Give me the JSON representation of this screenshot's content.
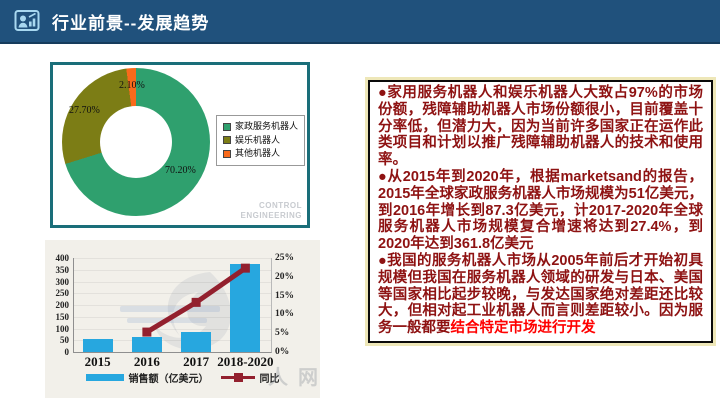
{
  "header": {
    "title": "行业前景--发展趋势",
    "icon": "presenter-chart-icon"
  },
  "colors": {
    "header_bg": "#20517C",
    "pie_panel_border": "#1A6E79",
    "text_dark_red": "#8E1212",
    "highlight_red": "#FF0000"
  },
  "chart_data": [
    {
      "type": "pie",
      "donut": true,
      "labels": [
        "家政服务机器人",
        "娱乐机器人",
        "其他机器人"
      ],
      "values": [
        70.2,
        27.7,
        2.1
      ],
      "value_labels": [
        "70.20%",
        "27.70%",
        "2.10%"
      ],
      "colors": [
        "#2FA06E",
        "#7C7D15",
        "#F96A1B"
      ],
      "legend_position": "right",
      "watermark_lines": [
        "CONTROL",
        "ENGINEERING"
      ]
    },
    {
      "type": "bar",
      "categories": [
        "2015",
        "2016",
        "2017",
        "2018-2020"
      ],
      "series": [
        {
          "name": "销售额（亿美元）",
          "kind": "bar",
          "axis": "left",
          "color": "#27A7DF",
          "values": [
            55,
            62,
            87,
            375
          ]
        },
        {
          "name": "同比",
          "kind": "line",
          "axis": "right",
          "color": "#93202E",
          "values": [
            null,
            5.3,
            13.2,
            22.3
          ]
        }
      ],
      "left_axis": {
        "min": 0,
        "max": 400,
        "step": 50
      },
      "right_axis": {
        "min": 0,
        "max": 25,
        "step": 5,
        "suffix": "%"
      },
      "legend_position": "bottom",
      "grid": true,
      "watermark_text": "人网"
    }
  ],
  "text_panel": {
    "bullets": [
      {
        "text": "●家用服务机器人和娱乐机器人大致占97%的市场份额，残障辅助机器人市场份额很小，目前覆盖十分率低，但潜力大，因为当前许多国家正在运作此类项目和计划以推广残障辅助机器人的技术和使用率。",
        "highlight": ""
      },
      {
        "text": "●从2015年到2020年，根据marketsand的报告，2015年全球家政服务机器人市场规模为51亿美元，到2016年增长到87.3亿美元，计2017-2020年全球服务机器人市场规模复合增速将达到27.4%，到2020年达到361.8亿美元",
        "highlight": ""
      },
      {
        "text": "●我国的服务机器人市场从2005年前后才开始初具规模但我国在服务机器人领域的研发与日本、美国等国家相比起步较晚，与发达国家绝对差距还比较大，但相对起工业机器人而言则差距较小。因为服务一般都要",
        "highlight": "结合特定市场进行开发"
      }
    ]
  }
}
